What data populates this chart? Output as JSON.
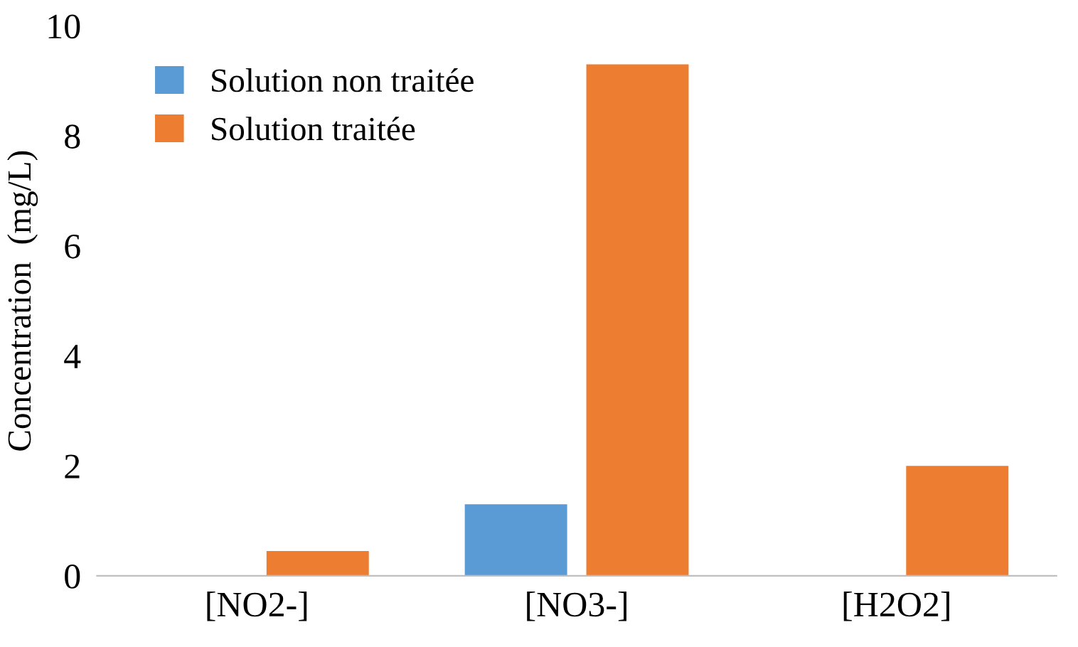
{
  "chart_data": {
    "type": "bar",
    "ylabel": "Concentration  (mg/L)",
    "categories": [
      "[NO2-]",
      "[NO3-]",
      "[H2O2]"
    ],
    "series": [
      {
        "name": "Solution non traitée",
        "color": "#5b9bd5",
        "values": [
          0,
          1.3,
          0
        ]
      },
      {
        "name": "Solution traitée",
        "color": "#ed7d31",
        "values": [
          0.45,
          9.3,
          2.0
        ]
      }
    ],
    "ylim": [
      0,
      10
    ],
    "yticks": [
      0,
      2,
      4,
      6,
      8,
      10
    ],
    "grid": false,
    "legend": "top left"
  }
}
